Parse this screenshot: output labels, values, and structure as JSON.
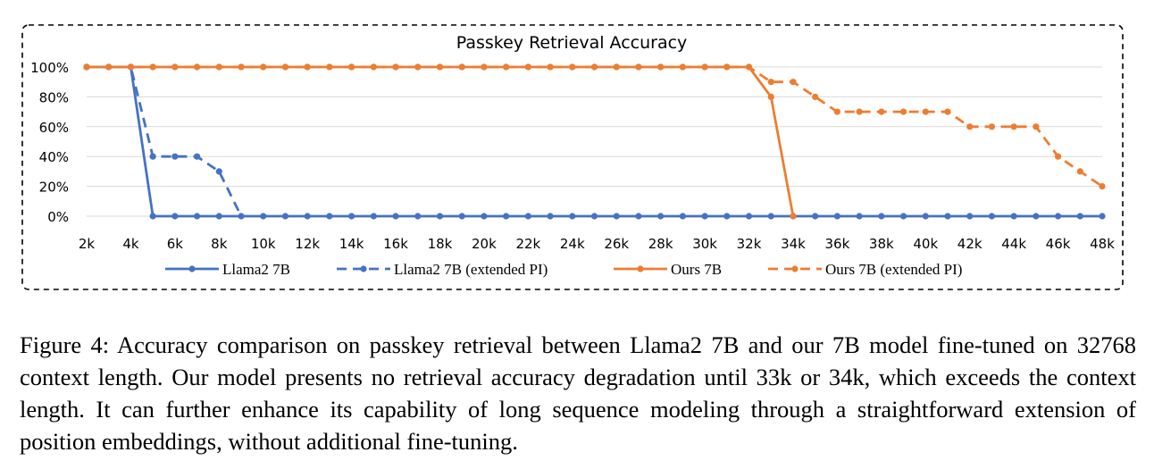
{
  "chart_data": {
    "type": "line",
    "title": "Passkey Retrieval Accuracy",
    "xlabel": "",
    "ylabel": "",
    "categories": [
      "2k",
      "3k",
      "4k",
      "5k",
      "6k",
      "7k",
      "8k",
      "9k",
      "10k",
      "11k",
      "12k",
      "13k",
      "14k",
      "15k",
      "16k",
      "17k",
      "18k",
      "19k",
      "20k",
      "21k",
      "22k",
      "23k",
      "24k",
      "25k",
      "26k",
      "27k",
      "28k",
      "29k",
      "30k",
      "31k",
      "32k",
      "33k",
      "34k",
      "35k",
      "36k",
      "37k",
      "38k",
      "39k",
      "40k",
      "41k",
      "42k",
      "43k",
      "44k",
      "45k",
      "46k",
      "47k",
      "48k"
    ],
    "tick_labels": [
      "2k",
      "4k",
      "6k",
      "8k",
      "10k",
      "12k",
      "14k",
      "16k",
      "18k",
      "20k",
      "22k",
      "24k",
      "26k",
      "28k",
      "30k",
      "32k",
      "34k",
      "36k",
      "38k",
      "40k",
      "42k",
      "44k",
      "46k",
      "48k"
    ],
    "y_tick_labels": [
      "0%",
      "20%",
      "40%",
      "60%",
      "80%",
      "100%"
    ],
    "ylim": [
      0,
      100
    ],
    "grid": true,
    "legend_position": "bottom",
    "series": [
      {
        "name": "Llama2 7B",
        "color": "#4472c4",
        "dashed": false,
        "values": [
          100,
          100,
          100,
          0,
          0,
          0,
          0,
          0,
          0,
          0,
          0,
          0,
          0,
          0,
          0,
          0,
          0,
          0,
          0,
          0,
          0,
          0,
          0,
          0,
          0,
          0,
          0,
          0,
          0,
          0,
          0,
          0,
          0,
          0,
          0,
          0,
          0,
          0,
          0,
          0,
          0,
          0,
          0,
          0,
          0,
          0,
          0
        ]
      },
      {
        "name": "Llama2 7B (extended PI)",
        "color": "#4472c4",
        "dashed": true,
        "values": [
          100,
          100,
          100,
          40,
          40,
          40,
          30,
          0,
          null,
          null,
          null,
          null,
          null,
          null,
          null,
          null,
          null,
          null,
          null,
          null,
          null,
          null,
          null,
          null,
          null,
          null,
          null,
          null,
          null,
          null,
          null,
          null,
          null,
          null,
          null,
          null,
          null,
          null,
          null,
          null,
          null,
          null,
          null,
          null,
          null,
          null,
          null
        ]
      },
      {
        "name": "Ours 7B",
        "color": "#ed7d31",
        "dashed": false,
        "values": [
          100,
          100,
          100,
          100,
          100,
          100,
          100,
          100,
          100,
          100,
          100,
          100,
          100,
          100,
          100,
          100,
          100,
          100,
          100,
          100,
          100,
          100,
          100,
          100,
          100,
          100,
          100,
          100,
          100,
          100,
          100,
          80,
          0,
          null,
          null,
          null,
          null,
          null,
          null,
          null,
          null,
          null,
          null,
          null,
          null,
          null,
          null
        ]
      },
      {
        "name": "Ours 7B (extended PI)",
        "color": "#ed7d31",
        "dashed": true,
        "values": [
          100,
          100,
          100,
          100,
          100,
          100,
          100,
          100,
          100,
          100,
          100,
          100,
          100,
          100,
          100,
          100,
          100,
          100,
          100,
          100,
          100,
          100,
          100,
          100,
          100,
          100,
          100,
          100,
          100,
          100,
          100,
          90,
          90,
          80,
          70,
          70,
          70,
          70,
          70,
          70,
          60,
          60,
          60,
          60,
          40,
          30,
          20
        ]
      }
    ]
  },
  "caption": "Figure 4: Accuracy comparison on passkey retrieval between Llama2 7B and our 7B model fine-tuned on 32768 context length. Our model presents no retrieval accuracy degradation until 33k or 34k, which exceeds the context length. It can further enhance its capability of long sequence modeling through a straightforward extension of position embeddings, without additional fine-tuning."
}
